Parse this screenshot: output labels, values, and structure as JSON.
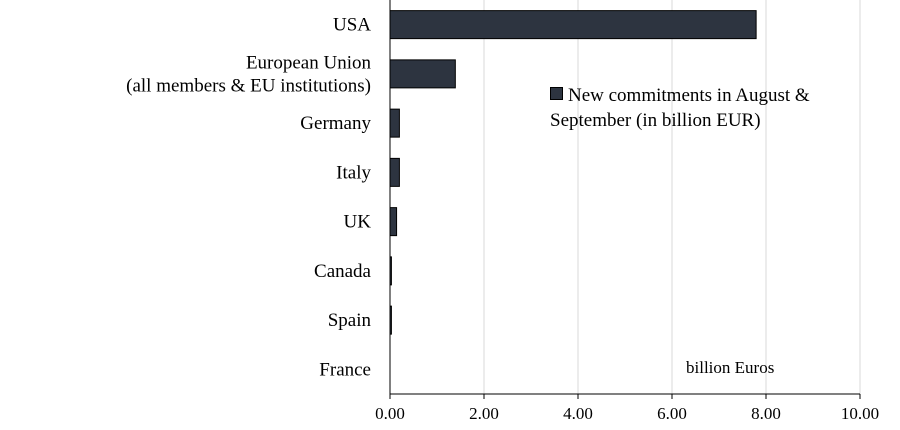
{
  "chart_data": {
    "type": "bar",
    "orientation": "horizontal",
    "categories": [
      "USA",
      "European Union\n(all members & EU institutions)",
      "Germany",
      "Italy",
      "UK",
      "Canada",
      "Spain",
      "France"
    ],
    "series": [
      {
        "name": "New commitments in August & September (in billion EUR)",
        "values": [
          7.79,
          1.39,
          0.2,
          0.2,
          0.14,
          0.03,
          0.03,
          0.0
        ]
      }
    ],
    "xlim": [
      0,
      10
    ],
    "xticks": [
      "0.00",
      "2.00",
      "4.00",
      "6.00",
      "8.00",
      "10.00"
    ],
    "grid": "vertical",
    "legend_position": "top-right",
    "colors": {
      "bar": "#2d3440",
      "grid": "#d9d9d9",
      "axis": "#000000"
    },
    "annotation": "billion Euros",
    "legend": {
      "line1": "New commitments in August &",
      "line2": "September (in billion EUR)"
    }
  }
}
